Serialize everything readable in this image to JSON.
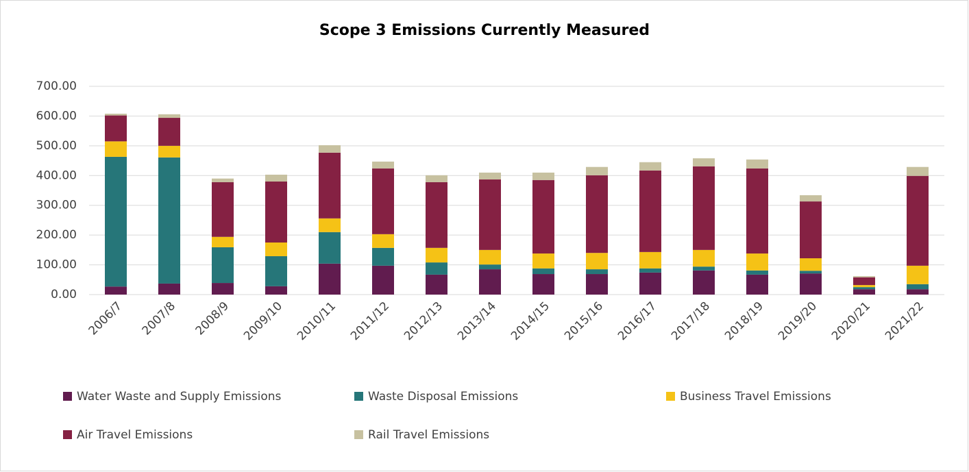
{
  "chart_data": {
    "type": "stacked_bar",
    "title": "Scope 3 Emissions Currently Measured",
    "categories": [
      "2006/7",
      "2007/8",
      "2008/9",
      "2009/10",
      "2010/11",
      "2011/12",
      "2012/13",
      "2013/14",
      "2014/15",
      "2015/16",
      "2016/17",
      "2017/18",
      "2018/19",
      "2019/20",
      "2020/21",
      "2021/22"
    ],
    "series": [
      {
        "name": "Water Waste and Supply Emissions",
        "color": "#611c4f",
        "values": [
          27,
          37,
          39,
          28,
          104,
          97,
          67,
          85,
          69,
          69,
          74,
          81,
          67,
          71,
          18,
          18
        ]
      },
      {
        "name": "Waste Disposal Emissions",
        "color": "#267679",
        "values": [
          436,
          424,
          120,
          101,
          106,
          60,
          41,
          16,
          19,
          16,
          14,
          13,
          14,
          9,
          7,
          17
        ]
      },
      {
        "name": "Business Travel Emissions",
        "color": "#f5c216",
        "values": [
          52,
          39,
          35,
          46,
          46,
          46,
          49,
          49,
          50,
          55,
          55,
          56,
          57,
          42,
          7,
          62
        ]
      },
      {
        "name": "Air Travel Emissions",
        "color": "#852143",
        "values": [
          87,
          94,
          184,
          205,
          221,
          221,
          221,
          237,
          247,
          261,
          274,
          281,
          286,
          191,
          26,
          302
        ]
      },
      {
        "name": "Rail Travel Emissions",
        "color": "#c7c1a0",
        "values": [
          6,
          12,
          12,
          23,
          25,
          23,
          23,
          23,
          25,
          28,
          28,
          27,
          30,
          21,
          4,
          30
        ]
      }
    ],
    "ylim": [
      0,
      700
    ],
    "yticks": [
      {
        "value": 0,
        "label": "0.00"
      },
      {
        "value": 100,
        "label": "100.00"
      },
      {
        "value": 200,
        "label": "200.00"
      },
      {
        "value": 300,
        "label": "300.00"
      },
      {
        "value": 400,
        "label": "400.00"
      },
      {
        "value": 500,
        "label": "500.00"
      },
      {
        "value": 600,
        "label": "600.00"
      },
      {
        "value": 700,
        "label": "700.00"
      }
    ],
    "grid": true,
    "legend": "bottom"
  }
}
